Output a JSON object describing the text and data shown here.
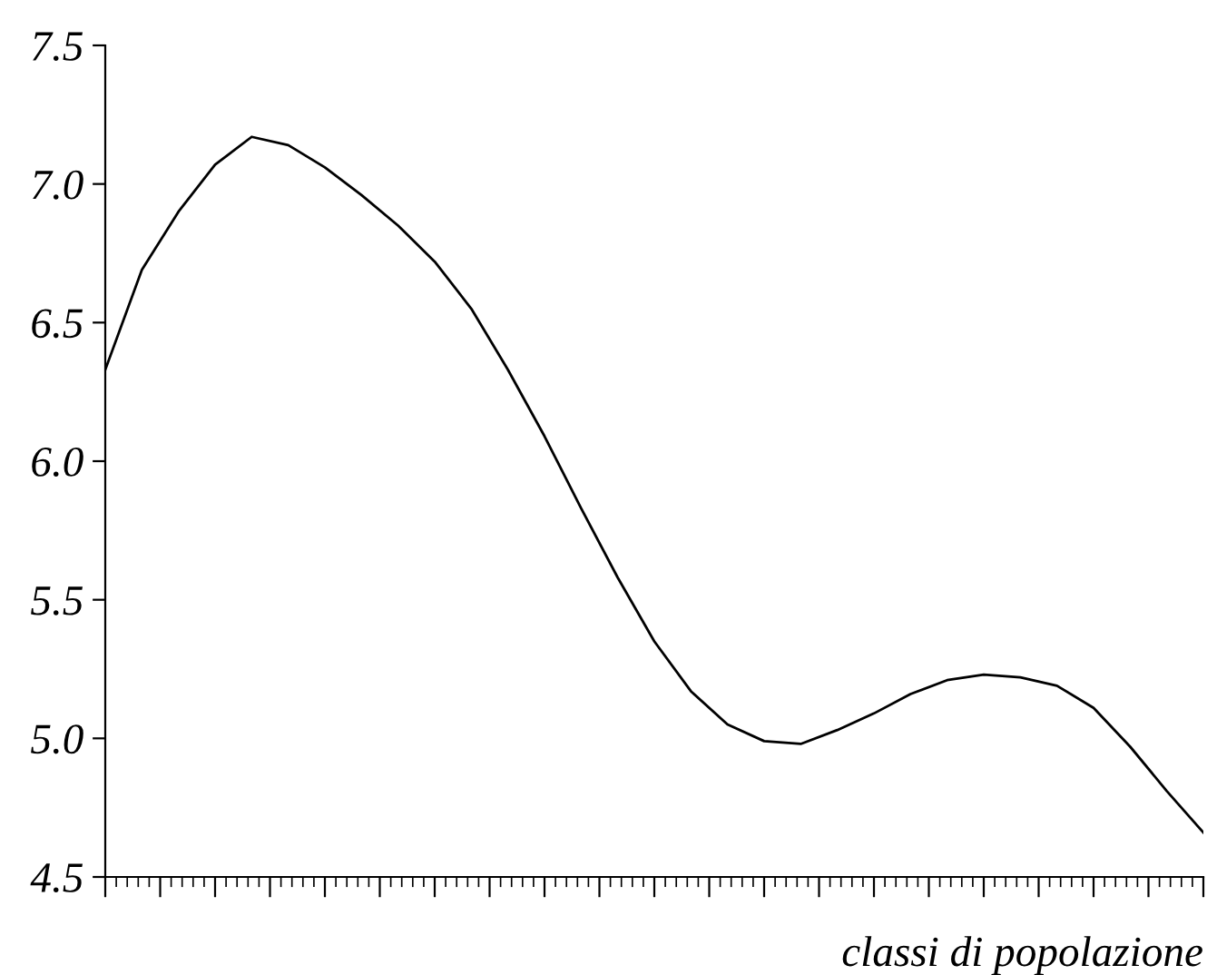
{
  "chart_data": {
    "type": "line",
    "xlabel": "classi di popolazione",
    "categories": [
      null,
      null,
      null,
      null,
      null,
      null,
      null,
      null,
      null,
      null,
      null,
      null,
      null,
      null,
      null,
      null,
      null,
      null,
      null,
      null,
      null,
      null,
      null,
      null,
      null,
      null,
      null,
      null,
      null,
      null,
      null
    ],
    "series": [
      {
        "color": "#000000",
        "values": [
          6.33,
          6.69,
          6.9,
          7.07,
          7.17,
          7.14,
          7.06,
          6.96,
          6.85,
          6.72,
          6.55,
          6.33,
          6.09,
          5.83,
          5.58,
          5.35,
          5.17,
          5.05,
          4.99,
          4.98,
          5.03,
          5.09,
          5.16,
          5.21,
          5.23,
          5.22,
          5.19,
          5.11,
          4.97,
          4.81,
          4.66
        ]
      }
    ],
    "ylim": [
      4.5,
      7.5
    ],
    "yticks": [
      {
        "value": 4.5,
        "label": "4.5"
      },
      {
        "value": 5.0,
        "label": "5.0"
      },
      {
        "value": 5.5,
        "label": "5.5"
      },
      {
        "value": 6.0,
        "label": "6.0"
      },
      {
        "value": 6.5,
        "label": "6.5"
      },
      {
        "value": 7.0,
        "label": "7.0"
      },
      {
        "value": 7.5,
        "label": "7.5"
      }
    ],
    "grid": false,
    "legend": false,
    "marker": "none",
    "line_style": "solid"
  }
}
